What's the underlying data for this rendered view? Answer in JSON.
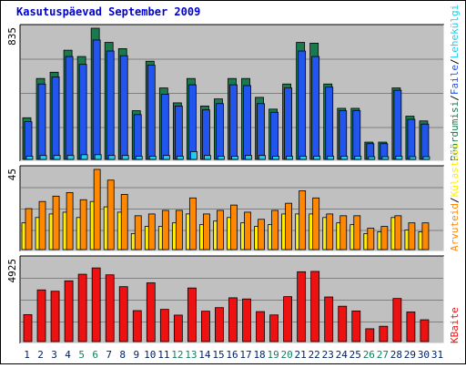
{
  "title": "Kasutuspäevad September 2009",
  "colors": {
    "hits": "#1a7a4e",
    "files": "#2255ee",
    "pages": "#22ccee",
    "visits": "#ff8800",
    "sites": "#ffee00",
    "kbytes": "#ee1111",
    "panel_bg": "#c0c0c0",
    "weekend_label": "#108060",
    "weekday_label": "#002266"
  },
  "legend": {
    "top": [
      "Pöördumisi",
      "/",
      "Faile",
      "/",
      "Lehekülgi"
    ],
    "middle": [
      "Arvuteid",
      "/",
      "Külastusi"
    ],
    "bottom": [
      "KBaite"
    ]
  },
  "chart_data": [
    {
      "type": "bar",
      "title": "Kasutuspäevad September 2009",
      "ylabel": "835",
      "ylim": [
        0,
        835
      ],
      "grid": true,
      "categories": [
        "1",
        "2",
        "3",
        "4",
        "5",
        "6",
        "7",
        "8",
        "9",
        "10",
        "11",
        "12",
        "13",
        "14",
        "15",
        "16",
        "17",
        "18",
        "19",
        "20",
        "21",
        "22",
        "23",
        "24",
        "25",
        "26",
        "27",
        "28",
        "29",
        "30"
      ],
      "series": [
        {
          "name": "Pöördumisi",
          "values": [
            265,
            515,
            555,
            695,
            655,
            835,
            745,
            705,
            310,
            625,
            455,
            360,
            515,
            340,
            385,
            515,
            515,
            395,
            320,
            480,
            745,
            740,
            480,
            325,
            325,
            110,
            110,
            455,
            275,
            245
          ]
        },
        {
          "name": "Faile",
          "values": [
            240,
            480,
            525,
            655,
            605,
            760,
            690,
            660,
            285,
            600,
            415,
            340,
            475,
            315,
            355,
            475,
            470,
            355,
            300,
            455,
            690,
            655,
            460,
            310,
            310,
            100,
            100,
            440,
            255,
            225
          ]
        },
        {
          "name": "Lehekülgi",
          "values": [
            20,
            25,
            25,
            25,
            30,
            30,
            25,
            25,
            20,
            20,
            25,
            20,
            50,
            25,
            20,
            20,
            25,
            25,
            20,
            20,
            20,
            20,
            20,
            20,
            20,
            15,
            15,
            20,
            15,
            15
          ]
        }
      ]
    },
    {
      "type": "bar",
      "ylabel": "45",
      "ylim": [
        0,
        45
      ],
      "grid": true,
      "categories": [
        "1",
        "2",
        "3",
        "4",
        "5",
        "6",
        "7",
        "8",
        "9",
        "10",
        "11",
        "12",
        "13",
        "14",
        "15",
        "16",
        "17",
        "18",
        "19",
        "20",
        "21",
        "22",
        "23",
        "24",
        "25",
        "26",
        "27",
        "28",
        "29",
        "30"
      ],
      "series": [
        {
          "name": "Arvuteid",
          "values": [
            23,
            27,
            30,
            32,
            28,
            45,
            39,
            31,
            19,
            20,
            22,
            22,
            29,
            20,
            22,
            25,
            21,
            17,
            22,
            26,
            33,
            29,
            20,
            19,
            19,
            12,
            13,
            19,
            15,
            15
          ]
        },
        {
          "name": "Külastusi",
          "values": [
            15,
            18,
            20,
            21,
            18,
            27,
            24,
            21,
            9,
            13,
            13,
            15,
            20,
            14,
            16,
            18,
            15,
            13,
            14,
            20,
            20,
            20,
            18,
            15,
            14,
            9,
            10,
            18,
            11,
            10
          ]
        }
      ]
    },
    {
      "type": "bar",
      "ylabel": "4925",
      "ylim": [
        0,
        4925
      ],
      "grid": true,
      "categories": [
        "1",
        "2",
        "3",
        "4",
        "5",
        "6",
        "7",
        "8",
        "9",
        "10",
        "11",
        "12",
        "13",
        "14",
        "15",
        "16",
        "17",
        "18",
        "19",
        "20",
        "21",
        "22",
        "23",
        "24",
        "25",
        "26",
        "27",
        "28",
        "29",
        "30"
      ],
      "series": [
        {
          "name": "KBaite",
          "values": [
            1620,
            3105,
            3025,
            3650,
            4045,
            4425,
            4010,
            3300,
            1860,
            3530,
            1935,
            1590,
            3220,
            1825,
            2040,
            2630,
            2560,
            1800,
            1600,
            2700,
            4195,
            4215,
            2680,
            2125,
            1840,
            770,
            920,
            2590,
            1780,
            1310
          ]
        }
      ]
    }
  ],
  "xaxis": {
    "days": [
      "1",
      "2",
      "3",
      "4",
      "5",
      "6",
      "7",
      "8",
      "9",
      "10",
      "11",
      "12",
      "13",
      "14",
      "15",
      "16",
      "17",
      "18",
      "19",
      "20",
      "21",
      "22",
      "23",
      "24",
      "25",
      "26",
      "27",
      "28",
      "29",
      "30",
      "31"
    ],
    "weekend": [
      5,
      6,
      12,
      13,
      19,
      20,
      26,
      27
    ]
  }
}
